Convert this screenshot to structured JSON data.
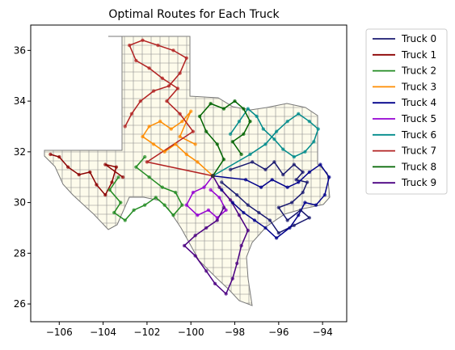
{
  "chart_data": {
    "type": "map",
    "title": "Optimal Routes for Each Truck",
    "xlabel": "",
    "ylabel": "",
    "xlim": [
      -107.3,
      -92.9
    ],
    "ylim": [
      25.3,
      37.0
    ],
    "x_ticks": [
      -106,
      -104,
      -102,
      -100,
      -98,
      -96,
      -94
    ],
    "x_tick_labels": [
      "−106",
      "−104",
      "−102",
      "−100",
      "−98",
      "−96",
      "−94"
    ],
    "y_ticks": [
      26,
      28,
      30,
      32,
      34,
      36
    ],
    "y_tick_labels": [
      "26",
      "28",
      "30",
      "32",
      "34",
      "36"
    ],
    "grid": false,
    "legend_position": "outside-upper-right",
    "depot": {
      "x": -99.0,
      "y": 31.05
    },
    "series": [
      {
        "name": "Truck 0",
        "color": "#191970",
        "points": [
          [
            -98.2,
            31.3
          ],
          [
            -97.2,
            31.6
          ],
          [
            -96.6,
            31.3
          ],
          [
            -96.2,
            31.6
          ],
          [
            -95.8,
            31.1
          ],
          [
            -95.3,
            31.5
          ],
          [
            -94.9,
            31.2
          ],
          [
            -95.2,
            30.9
          ],
          [
            -94.7,
            30.8
          ],
          [
            -94.9,
            30.4
          ],
          [
            -95.4,
            30.0
          ],
          [
            -96.0,
            29.8
          ],
          [
            -95.6,
            29.3
          ],
          [
            -95.0,
            29.7
          ],
          [
            -94.6,
            29.4
          ],
          [
            -95.3,
            29.1
          ],
          [
            -96.0,
            28.8
          ],
          [
            -96.4,
            29.3
          ],
          [
            -96.9,
            29.6
          ],
          [
            -97.4,
            29.9
          ],
          [
            -97.9,
            30.3
          ],
          [
            -98.6,
            30.8
          ]
        ]
      },
      {
        "name": "Truck 1",
        "color": "#8b0000",
        "points": [
          [
            -106.4,
            31.9
          ],
          [
            -106.0,
            31.8
          ],
          [
            -105.6,
            31.4
          ],
          [
            -105.1,
            31.1
          ],
          [
            -104.6,
            31.2
          ],
          [
            -104.3,
            30.7
          ],
          [
            -103.9,
            30.3
          ],
          [
            -103.6,
            30.8
          ],
          [
            -103.4,
            31.4
          ],
          [
            -103.9,
            31.5
          ],
          [
            -103.1,
            31.0
          ]
        ]
      },
      {
        "name": "Truck 2",
        "color": "#228b22",
        "points": [
          [
            -103.3,
            31.0
          ],
          [
            -103.7,
            30.5
          ],
          [
            -103.2,
            30.0
          ],
          [
            -103.5,
            29.6
          ],
          [
            -103.0,
            29.3
          ],
          [
            -102.6,
            29.7
          ],
          [
            -102.1,
            29.9
          ],
          [
            -101.6,
            30.2
          ],
          [
            -101.2,
            29.9
          ],
          [
            -100.8,
            29.5
          ],
          [
            -100.4,
            29.9
          ],
          [
            -100.7,
            30.4
          ],
          [
            -101.3,
            30.6
          ],
          [
            -101.9,
            31.0
          ],
          [
            -102.5,
            31.4
          ],
          [
            -102.1,
            31.8
          ]
        ]
      },
      {
        "name": "Truck 3",
        "color": "#ff8c00",
        "points": [
          [
            -99.0,
            31.05
          ],
          [
            -99.7,
            31.6
          ],
          [
            -100.2,
            31.9
          ],
          [
            -100.7,
            32.3
          ],
          [
            -101.2,
            32.0
          ],
          [
            -101.7,
            32.3
          ],
          [
            -102.2,
            32.6
          ],
          [
            -101.9,
            33.0
          ],
          [
            -101.4,
            33.2
          ],
          [
            -100.9,
            32.9
          ],
          [
            -100.4,
            33.2
          ],
          [
            -100.0,
            33.6
          ],
          [
            -100.5,
            32.6
          ],
          [
            -99.8,
            32.3
          ]
        ]
      },
      {
        "name": "Truck 4",
        "color": "#00008b",
        "points": [
          [
            -99.0,
            31.05
          ],
          [
            -97.5,
            30.9
          ],
          [
            -96.8,
            30.6
          ],
          [
            -96.3,
            30.9
          ],
          [
            -95.6,
            30.6
          ],
          [
            -95.1,
            30.8
          ],
          [
            -94.6,
            31.2
          ],
          [
            -94.1,
            31.5
          ],
          [
            -93.7,
            31.0
          ],
          [
            -93.9,
            30.3
          ],
          [
            -94.3,
            29.9
          ],
          [
            -94.8,
            30.0
          ],
          [
            -95.1,
            29.5
          ],
          [
            -95.5,
            29.0
          ],
          [
            -96.1,
            28.6
          ],
          [
            -96.6,
            29.0
          ],
          [
            -97.1,
            29.3
          ],
          [
            -97.6,
            29.6
          ],
          [
            -98.1,
            30.0
          ],
          [
            -98.6,
            30.5
          ]
        ]
      },
      {
        "name": "Truck 5",
        "color": "#9400d3",
        "points": [
          [
            -99.0,
            31.05
          ],
          [
            -99.4,
            30.6
          ],
          [
            -99.9,
            30.4
          ],
          [
            -100.2,
            29.9
          ],
          [
            -99.7,
            29.5
          ],
          [
            -99.2,
            29.7
          ],
          [
            -98.8,
            29.4
          ],
          [
            -98.4,
            29.7
          ],
          [
            -98.7,
            30.2
          ],
          [
            -99.1,
            30.5
          ]
        ]
      },
      {
        "name": "Truck 6",
        "color": "#008b8b",
        "points": [
          [
            -99.0,
            31.05
          ],
          [
            -97.3,
            31.9
          ],
          [
            -96.6,
            32.3
          ],
          [
            -96.1,
            32.8
          ],
          [
            -95.6,
            33.2
          ],
          [
            -95.1,
            33.5
          ],
          [
            -94.6,
            33.2
          ],
          [
            -94.2,
            32.9
          ],
          [
            -94.4,
            32.4
          ],
          [
            -94.8,
            32.0
          ],
          [
            -95.3,
            31.8
          ],
          [
            -95.8,
            32.1
          ],
          [
            -96.2,
            32.5
          ],
          [
            -96.7,
            32.9
          ],
          [
            -97.0,
            33.4
          ],
          [
            -97.4,
            33.7
          ],
          [
            -97.8,
            33.2
          ],
          [
            -98.2,
            32.7
          ]
        ]
      },
      {
        "name": "Truck 7",
        "color": "#b22222",
        "points": [
          [
            -99.0,
            31.05
          ],
          [
            -102.0,
            31.6
          ],
          [
            -99.9,
            32.8
          ],
          [
            -100.5,
            33.5
          ],
          [
            -101.1,
            34.0
          ],
          [
            -100.6,
            34.5
          ],
          [
            -101.3,
            34.9
          ],
          [
            -101.9,
            35.3
          ],
          [
            -102.5,
            35.6
          ],
          [
            -102.8,
            36.2
          ],
          [
            -102.2,
            36.4
          ],
          [
            -101.5,
            36.2
          ],
          [
            -100.8,
            36.0
          ],
          [
            -100.2,
            35.7
          ],
          [
            -100.5,
            35.1
          ],
          [
            -101.0,
            34.6
          ],
          [
            -101.7,
            34.4
          ],
          [
            -102.3,
            34.0
          ],
          [
            -102.7,
            33.5
          ],
          [
            -103.0,
            33.0
          ]
        ]
      },
      {
        "name": "Truck 8",
        "color": "#006400",
        "points": [
          [
            -99.0,
            31.05
          ],
          [
            -98.5,
            31.7
          ],
          [
            -98.8,
            32.3
          ],
          [
            -99.3,
            32.8
          ],
          [
            -99.6,
            33.4
          ],
          [
            -99.1,
            33.9
          ],
          [
            -98.5,
            33.7
          ],
          [
            -98.0,
            34.0
          ],
          [
            -97.6,
            33.7
          ],
          [
            -97.3,
            33.2
          ],
          [
            -97.6,
            32.7
          ],
          [
            -98.1,
            32.4
          ],
          [
            -97.7,
            31.9
          ]
        ]
      },
      {
        "name": "Truck 9",
        "color": "#4b0082",
        "points": [
          [
            -99.0,
            31.05
          ],
          [
            -98.7,
            30.6
          ],
          [
            -98.2,
            30.1
          ],
          [
            -97.8,
            29.5
          ],
          [
            -97.4,
            28.9
          ],
          [
            -97.7,
            28.3
          ],
          [
            -97.9,
            27.6
          ],
          [
            -98.1,
            27.0
          ],
          [
            -98.4,
            26.4
          ],
          [
            -98.9,
            26.8
          ],
          [
            -99.3,
            27.3
          ],
          [
            -99.8,
            27.9
          ],
          [
            -100.3,
            28.3
          ],
          [
            -99.8,
            28.7
          ],
          [
            -99.3,
            29.0
          ],
          [
            -98.8,
            29.3
          ],
          [
            -98.5,
            29.8
          ]
        ]
      }
    ]
  }
}
